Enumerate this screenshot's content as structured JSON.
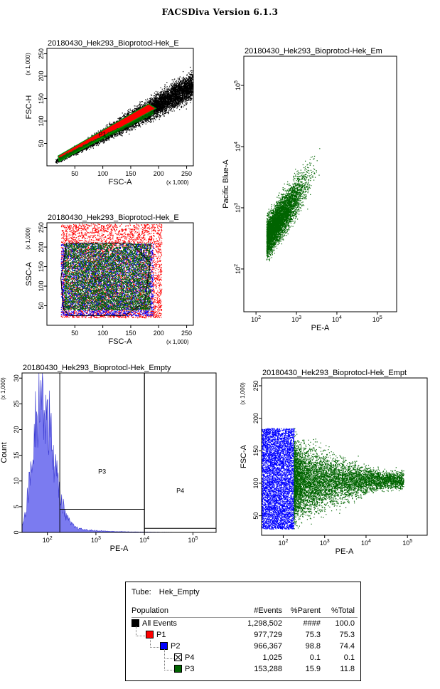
{
  "header": {
    "title": "FACSDiva Version 6.1.3"
  },
  "colors": {
    "black": "#000000",
    "red": "#ff0000",
    "blue": "#0000ff",
    "green": "#006400",
    "hist": "#7b7bf0"
  },
  "chart_data": [
    {
      "id": "p1",
      "type": "scatter",
      "title": "20180430_Hek293_Bioprotocl-Hek_E",
      "xlabel": "FSC-A",
      "ylabel": "FSC-H",
      "x_scale_note": "(x 1,000)",
      "y_scale_note": "(x 1,000)",
      "xlim": [
        0,
        262
      ],
      "ylim": [
        0,
        262
      ],
      "x_ticks": [
        "50",
        "100",
        "150",
        "200",
        "250"
      ],
      "y_ticks": [
        "50",
        "100",
        "150",
        "200",
        "250"
      ],
      "gates": [
        {
          "name": "P1",
          "color": "#00a000"
        }
      ],
      "series": [
        {
          "name": "All Events",
          "color": "#000000",
          "trend": {
            "x": [
              15,
              260
            ],
            "y": [
              10,
              180
            ]
          }
        },
        {
          "name": "P1",
          "color": "#006400",
          "trend": {
            "x": [
              20,
              190
            ],
            "y": [
              15,
              120
            ]
          }
        }
      ]
    },
    {
      "id": "p2",
      "type": "scatter",
      "title": "20180430_Hek293_Bioprotocl-Hek_E",
      "xlabel": "FSC-A",
      "ylabel": "SSC-A",
      "x_scale_note": "(x 1,000)",
      "y_scale_note": "(x 1,000)",
      "xlim": [
        0,
        262
      ],
      "ylim": [
        0,
        262
      ],
      "x_ticks": [
        "50",
        "100",
        "150",
        "200",
        "250"
      ],
      "y_ticks": [
        "50",
        "100",
        "150",
        "200",
        "250"
      ],
      "gates": [
        {
          "name": "P2",
          "color": "#000000"
        }
      ],
      "series": [
        {
          "name": "P1",
          "color": "#ff0000",
          "x_range": [
            25,
            205
          ],
          "y_range": [
            20,
            260
          ]
        },
        {
          "name": "P2",
          "color": "#0000ff",
          "x_range": [
            25,
            190
          ],
          "y_range": [
            25,
            210
          ]
        },
        {
          "name": "P3",
          "color": "#006400",
          "x_range": [
            30,
            185
          ],
          "y_range": [
            40,
            210
          ]
        }
      ]
    },
    {
      "id": "p3",
      "type": "scatter",
      "title": "20180430_Hek293_Bioprotocl-Hek_Em",
      "xlabel": "PE-A",
      "ylabel": "Pacific Blue-A",
      "x_scale": "log",
      "y_scale": "log",
      "xlim": [
        50,
        300000
      ],
      "ylim": [
        20,
        300000
      ],
      "x_ticks": [
        "10^2",
        "10^3",
        "10^4",
        "10^5"
      ],
      "y_ticks": [
        "10^2",
        "10^3",
        "10^4",
        "10^5"
      ],
      "series": [
        {
          "name": "P3",
          "color": "#006400",
          "x_range": [
            180,
            80000
          ],
          "y_range": [
            25,
            60000
          ]
        }
      ]
    },
    {
      "id": "p4",
      "type": "histogram",
      "title": "20180430_Hek293_Bioprotocl-Hek_Empty",
      "xlabel": "PE-A",
      "ylabel": "Count",
      "y_scale_note": "(x 1,000)",
      "x_scale": "log",
      "xlim": [
        30,
        300000
      ],
      "ylim": [
        0,
        31
      ],
      "x_ticks": [
        "10^2",
        "10^3",
        "10^4",
        "10^5"
      ],
      "y_ticks": [
        "0",
        "5",
        "10",
        "15",
        "20",
        "25",
        "30"
      ],
      "peak": {
        "x": 70,
        "y": 31
      },
      "gates": [
        {
          "name": "P3",
          "x_range": [
            180,
            10000
          ],
          "level": 4.5
        },
        {
          "name": "P4",
          "x_range": [
            10000,
            300000
          ],
          "level": 0.8
        }
      ]
    },
    {
      "id": "p5",
      "type": "scatter",
      "title": "20180430_Hek293_Bioprotocl-Hek_Empt",
      "xlabel": "PE-A",
      "ylabel": "FSC-A",
      "y_scale_note": "(x 1,000)",
      "x_scale": "log",
      "xlim": [
        30,
        300000
      ],
      "ylim": [
        20,
        262
      ],
      "x_ticks": [
        "10^2",
        "10^3",
        "10^4",
        "10^5"
      ],
      "y_ticks": [
        "50",
        "100",
        "150",
        "200",
        "250"
      ],
      "series": [
        {
          "name": "P2",
          "color": "#0000ff",
          "x_range": [
            30,
            180
          ],
          "y_range": [
            30,
            185
          ]
        },
        {
          "name": "P3",
          "color": "#006400",
          "x_range": [
            180,
            80000
          ],
          "y_range": [
            30,
            185
          ]
        }
      ]
    }
  ],
  "stats": {
    "tube_label": "Tube:",
    "tube_name": "Hek_Empty",
    "columns": [
      "Population",
      "#Events",
      "%Parent",
      "%Total"
    ],
    "rows": [
      {
        "name": "All Events",
        "color": "#000000",
        "level": 0,
        "events": "1,298,502",
        "parent": "####",
        "total": "100.0"
      },
      {
        "name": "P1",
        "color": "#ff0000",
        "level": 1,
        "events": "977,729",
        "parent": "75.3",
        "total": "75.3"
      },
      {
        "name": "P2",
        "color": "#0000ff",
        "level": 2,
        "events": "966,367",
        "parent": "98.8",
        "total": "74.4"
      },
      {
        "name": "P4",
        "color": "#ffffff",
        "level": 3,
        "events": "1,025",
        "parent": "0.1",
        "total": "0.1",
        "crossed": true
      },
      {
        "name": "P3",
        "color": "#006400",
        "level": 3,
        "events": "153,288",
        "parent": "15.9",
        "total": "11.8"
      }
    ]
  }
}
